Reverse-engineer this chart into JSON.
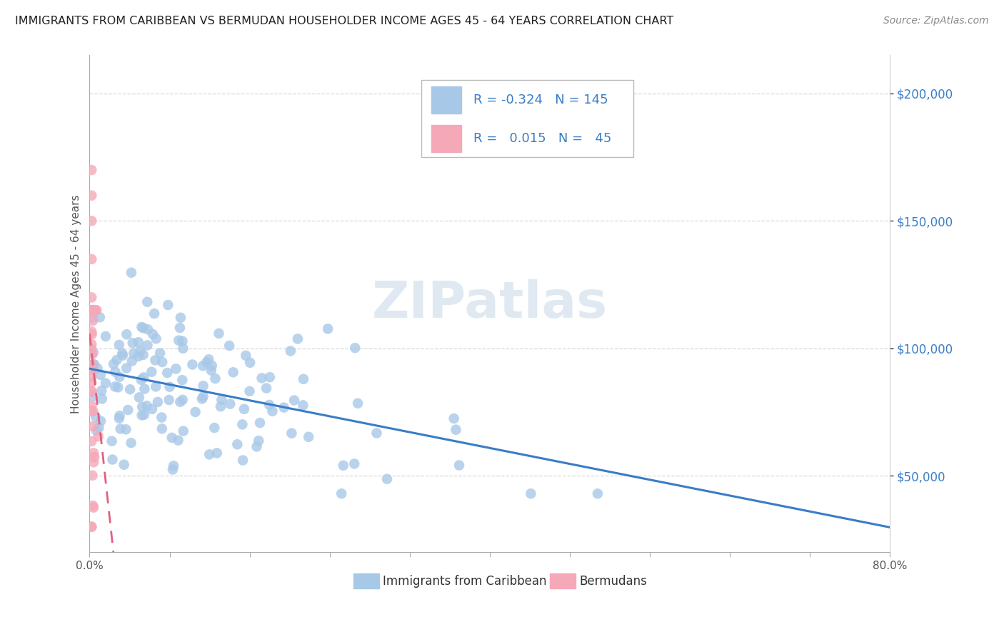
{
  "title": "IMMIGRANTS FROM CARIBBEAN VS BERMUDAN HOUSEHOLDER INCOME AGES 45 - 64 YEARS CORRELATION CHART",
  "source": "Source: ZipAtlas.com",
  "ylabel": "Householder Income Ages 45 - 64 years",
  "xlim": [
    0.0,
    0.8
  ],
  "ylim": [
    20000,
    215000
  ],
  "yticks": [
    50000,
    100000,
    150000,
    200000
  ],
  "ytick_labels": [
    "$50,000",
    "$100,000",
    "$150,000",
    "$200,000"
  ],
  "xtick_positions": [
    0.0,
    0.08,
    0.16,
    0.24,
    0.32,
    0.4,
    0.48,
    0.56,
    0.64,
    0.72,
    0.8
  ],
  "xtick_labels": [
    "0.0%",
    "",
    "",
    "",
    "",
    "",
    "",
    "",
    "",
    "",
    "80.0%"
  ],
  "legend_caribbean_r": "-0.324",
  "legend_caribbean_n": "145",
  "legend_bermuda_r": "0.015",
  "legend_bermuda_n": "45",
  "caribbean_color": "#a8c8e8",
  "bermuda_color": "#f4a8b8",
  "caribbean_line_color": "#3a7cc7",
  "bermuda_line_color": "#e06080",
  "bermuda_line_style": "--",
  "watermark": "ZIPatlas",
  "background_color": "#ffffff",
  "grid_color": "#d8d8d8",
  "title_color": "#222222",
  "axis_label_color": "#555555",
  "legend_text_color": "#3a7cc7",
  "bottom_legend_carib": "Immigrants from Caribbean",
  "bottom_legend_berm": "Bermudans"
}
